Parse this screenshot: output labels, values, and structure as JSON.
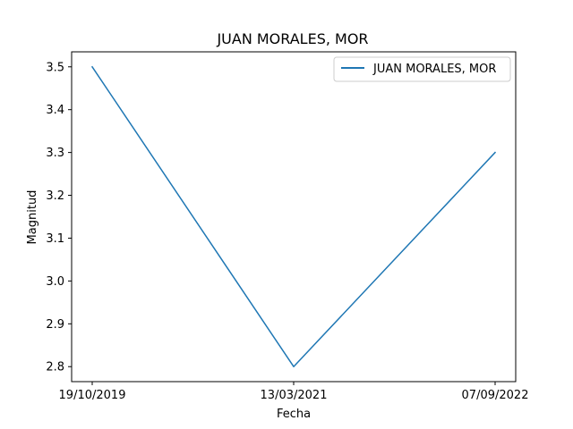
{
  "chart_data": {
    "type": "line",
    "title": "JUAN MORALES, MOR",
    "xlabel": "Fecha",
    "ylabel": "Magnitud",
    "categories": [
      "19/10/2019",
      "13/03/2021",
      "07/09/2022"
    ],
    "series": [
      {
        "name": "JUAN MORALES, MOR",
        "values": [
          3.5,
          2.8,
          3.3
        ],
        "color": "#1f77b4"
      }
    ],
    "ylim": [
      2.765,
      3.535
    ],
    "yticks": [
      2.8,
      2.9,
      3.0,
      3.1,
      3.2,
      3.3,
      3.4,
      3.5
    ],
    "ytick_labels": [
      "2.8",
      "2.9",
      "3.0",
      "3.1",
      "3.2",
      "3.3",
      "3.4",
      "3.5"
    ],
    "grid": false,
    "legend_position": "upper right"
  }
}
